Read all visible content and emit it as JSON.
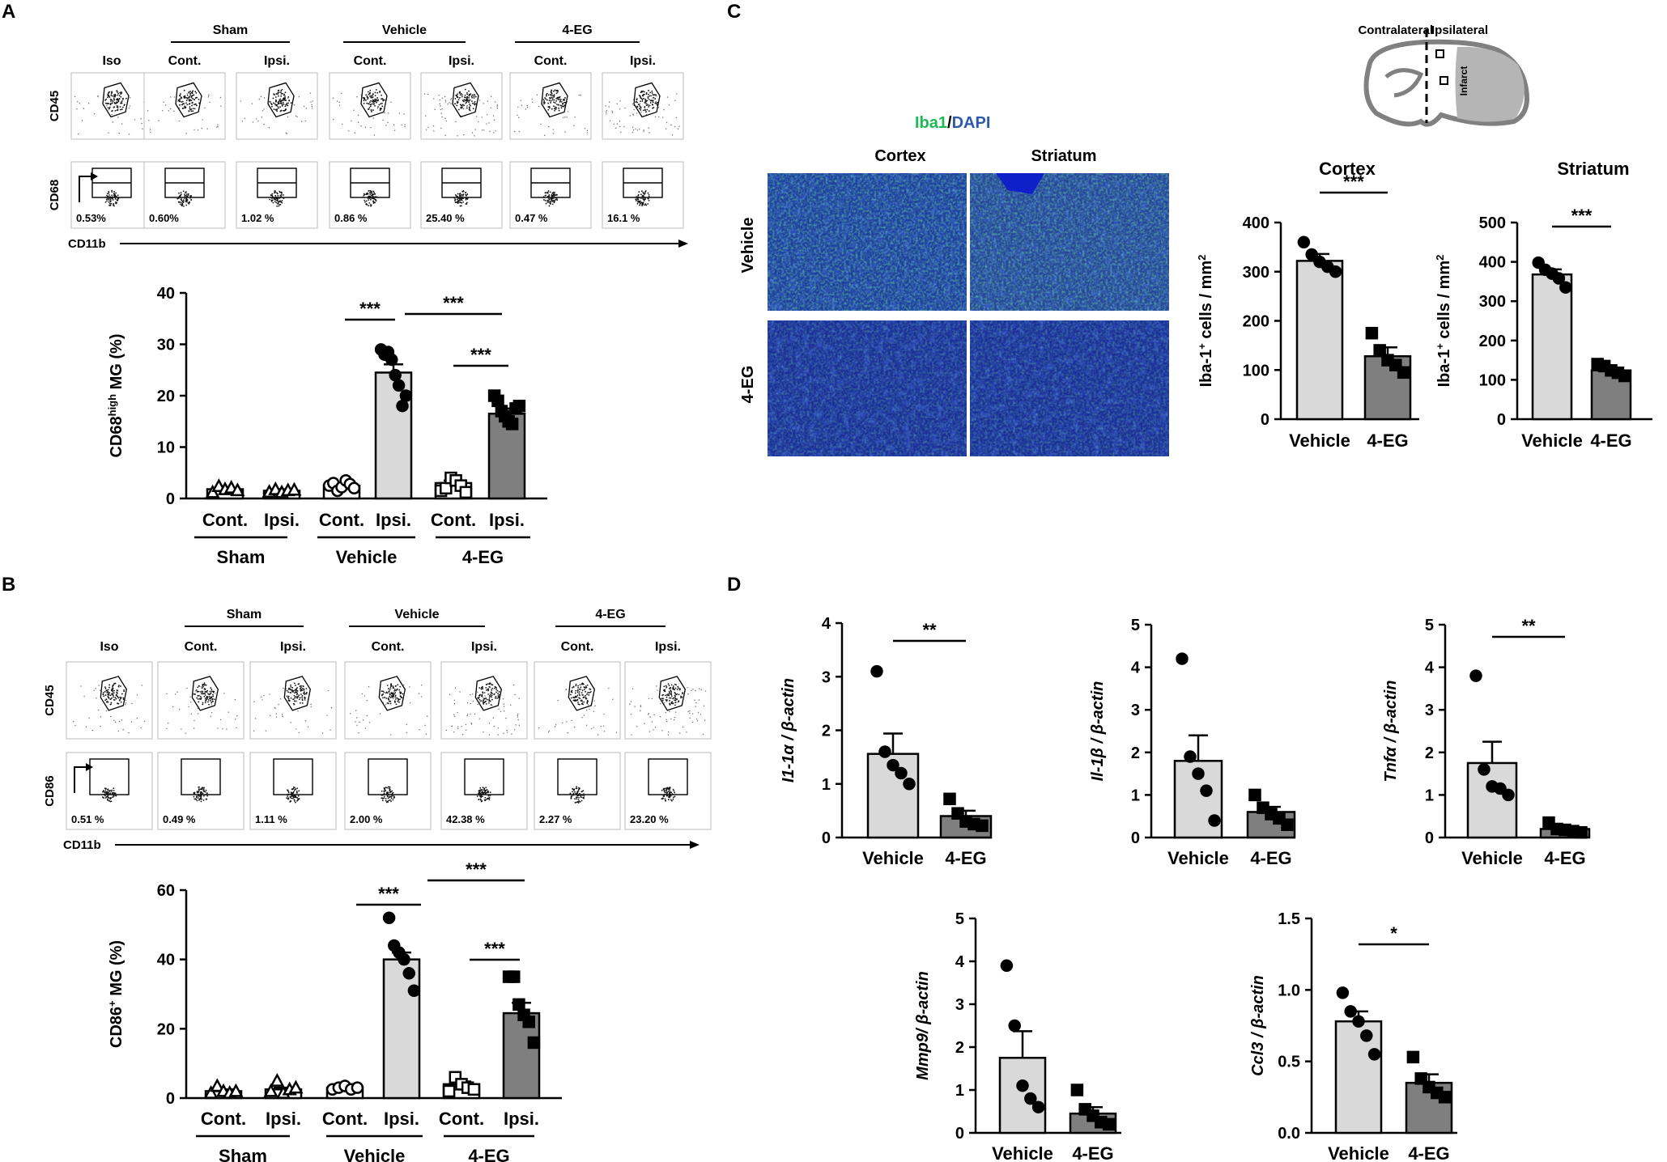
{
  "figure": {
    "panel_a": {
      "letter": "A",
      "groups": [
        "Sham",
        "Vehicle",
        "4-EG"
      ],
      "flow_columns": [
        "Iso",
        "Cont.",
        "Ipsi.",
        "Cont.",
        "Ipsi.",
        "Cont.",
        "Ipsi."
      ],
      "y_axis_top": "CD45",
      "y_axis_bottom": "CD68",
      "x_axis": "CD11b",
      "percentages": [
        "0.53%",
        "0.60%",
        "1.02 %",
        "0.86 %",
        "25.40 %",
        "0.47 %",
        "16.1 %"
      ]
    },
    "panel_b": {
      "letter": "B",
      "groups": [
        "Sham",
        "Vehicle",
        "4-EG"
      ],
      "flow_columns": [
        "Iso",
        "Cont.",
        "Ipsi.",
        "Cont.",
        "Ipsi.",
        "Cont.",
        "Ipsi."
      ],
      "y_axis_top": "CD45",
      "y_axis_bottom": "CD86",
      "x_axis": "CD11b",
      "percentages": [
        "0.51 %",
        "0.49 %",
        "1.11 %",
        "2.00 %",
        "42.38 %",
        "2.27 %",
        "23.20 %"
      ]
    },
    "panel_c": {
      "letter": "C",
      "stain_green": "Iba1",
      "stain_sep": "/",
      "stain_blue": "DAPI",
      "micro_cols": [
        "Cortex",
        "Striatum"
      ],
      "micro_rows": [
        "Vehicle",
        "4-EG"
      ],
      "schematic": {
        "left": "Contralateral",
        "right": "Ipsilateral",
        "infarct": "Infarct"
      }
    },
    "panel_d": {
      "letter": "D"
    },
    "colors": {
      "light_bar": "#d9d9d9",
      "dark_bar": "#7f7f7f",
      "open_bar": "#ffffff",
      "iba1_green": "#1db954",
      "dapi_blue": "#2e5aa8",
      "micro_green": "#2f8a3a",
      "micro_blue": "#1c2e9a"
    }
  },
  "chart_data": [
    {
      "id": "cd68",
      "type": "bar",
      "ylabel_main": "CD68",
      "ylabel_sup": "high",
      "ylabel_rest": " MG (%)",
      "ylim": [
        0,
        40
      ],
      "yticks": [
        0,
        10,
        20,
        30,
        40
      ],
      "categories": [
        "Cont.",
        "Ipsi.",
        "Cont.",
        "Ipsi.",
        "Cont.",
        "Ipsi."
      ],
      "group_labels": [
        "Sham",
        "Vehicle",
        "4-EG"
      ],
      "values": [
        1.8,
        1.5,
        2.5,
        24.5,
        3.0,
        16.5
      ],
      "errors": [
        0.4,
        0.3,
        0.4,
        1.6,
        0.5,
        1.0
      ],
      "fills": [
        "white",
        "white",
        "white",
        "light",
        "white",
        "dark"
      ],
      "markers": [
        "triangle",
        "triangle",
        "circle",
        "circle",
        "square",
        "square"
      ],
      "points": [
        [
          1.2,
          2.4,
          1.8,
          2.1,
          1.6
        ],
        [
          1.3,
          1.8,
          1.2,
          1.6,
          1.7
        ],
        [
          2.5,
          3.0,
          1.5,
          2.2,
          3.5,
          2.8,
          2.0
        ],
        [
          29,
          28,
          28.5,
          27,
          24,
          22,
          18,
          20
        ],
        [
          1.5,
          2.0,
          4.0,
          3.5,
          2.5,
          1.2
        ],
        [
          20,
          19,
          17,
          16,
          15,
          14.5,
          17.5,
          18
        ]
      ],
      "significance": [
        {
          "from": 3,
          "to": 3,
          "label": "***"
        },
        {
          "from": 2,
          "to": 3,
          "label": "***"
        },
        {
          "from": 3,
          "to": 5,
          "label": "***"
        },
        {
          "from": 4,
          "to": 5,
          "label": "***"
        }
      ]
    },
    {
      "id": "cd86",
      "type": "bar",
      "ylabel_main": "CD86",
      "ylabel_sup": "+",
      "ylabel_rest": " MG (%)",
      "ylim": [
        0,
        60
      ],
      "yticks": [
        0,
        20,
        40,
        60
      ],
      "categories": [
        "Cont.",
        "Ipsi.",
        "Cont.",
        "Ipsi.",
        "Cont.",
        "Ipsi."
      ],
      "group_labels": [
        "Sham",
        "Vehicle",
        "4-EG"
      ],
      "values": [
        2.0,
        2.5,
        3.0,
        40.0,
        4.0,
        24.5
      ],
      "errors": [
        0.5,
        0.5,
        0.3,
        2.0,
        0.8,
        3.0
      ],
      "fills": [
        "white",
        "white",
        "white",
        "light",
        "white",
        "dark"
      ],
      "markers": [
        "triangle",
        "triangle",
        "circle",
        "circle",
        "square",
        "square"
      ],
      "points": [
        [
          1.5,
          3.5,
          2.0,
          1.5,
          2.0
        ],
        [
          2.0,
          5.0,
          1.5,
          2.5,
          3.0
        ],
        [
          2.5,
          3.0,
          3.5,
          2.5,
          3.0
        ],
        [
          52,
          44,
          42,
          40,
          36,
          31
        ],
        [
          2.0,
          6.0,
          4.0,
          3.0,
          2.5
        ],
        [
          35,
          35,
          27,
          24,
          22,
          16
        ]
      ],
      "significance": [
        {
          "from": 2,
          "to": 3,
          "label": "***"
        },
        {
          "from": 3,
          "to": 5,
          "label": "***"
        },
        {
          "from": 4,
          "to": 5,
          "label": "***"
        }
      ]
    },
    {
      "id": "iba_cortex",
      "type": "bar",
      "title": "Cortex",
      "ylabel_main": "Iba-1",
      "ylabel_sup": "+",
      "ylabel_rest": " cells / mm",
      "ylabel_sup2": "2",
      "ylim": [
        0,
        400
      ],
      "yticks": [
        0,
        100,
        200,
        300,
        400
      ],
      "categories": [
        "Vehicle",
        "4-EG"
      ],
      "values": [
        322,
        128
      ],
      "errors": [
        14,
        18
      ],
      "fills": [
        "light",
        "dark"
      ],
      "markers": [
        "circle",
        "square"
      ],
      "points": [
        [
          360,
          335,
          320,
          310,
          300
        ],
        [
          175,
          140,
          120,
          110,
          95
        ]
      ],
      "significance": [
        {
          "from": 0,
          "to": 1,
          "label": "***"
        }
      ]
    },
    {
      "id": "iba_striatum",
      "type": "bar",
      "title": "Striatum",
      "ylabel_main": "Iba-1",
      "ylabel_sup": "+",
      "ylabel_rest": " cells / mm",
      "ylabel_sup2": "2",
      "ylim": [
        0,
        500
      ],
      "yticks": [
        0,
        100,
        200,
        300,
        400,
        500
      ],
      "categories": [
        "Vehicle",
        "4-EG"
      ],
      "values": [
        368,
        124
      ],
      "errors": [
        13,
        7
      ],
      "fills": [
        "light",
        "dark"
      ],
      "markers": [
        "circle",
        "square"
      ],
      "points": [
        [
          398,
          380,
          370,
          358,
          335
        ],
        [
          140,
          135,
          124,
          118,
          110
        ]
      ],
      "significance": [
        {
          "from": 0,
          "to": 1,
          "label": "***"
        }
      ]
    },
    {
      "id": "il1a",
      "type": "bar",
      "ylabel_main": "I1-1α / β-actin",
      "ylim": [
        0,
        4
      ],
      "yticks": [
        0,
        1,
        2,
        3,
        4
      ],
      "categories": [
        "Vehicle",
        "4-EG"
      ],
      "values": [
        1.56,
        0.4
      ],
      "errors": [
        0.38,
        0.1
      ],
      "fills": [
        "light",
        "dark"
      ],
      "markers": [
        "circle",
        "square"
      ],
      "points": [
        [
          3.1,
          1.6,
          1.35,
          1.2,
          1.0
        ],
        [
          0.72,
          0.45,
          0.3,
          0.25,
          0.22
        ]
      ],
      "significance": [
        {
          "from": 0,
          "to": 1,
          "label": "**"
        }
      ]
    },
    {
      "id": "il1b",
      "type": "bar",
      "ylabel_main": "Il-1β / β-actin",
      "ylim": [
        0,
        5
      ],
      "yticks": [
        0,
        1,
        2,
        3,
        4,
        5
      ],
      "categories": [
        "Vehicle",
        "4-EG"
      ],
      "values": [
        1.8,
        0.6
      ],
      "errors": [
        0.6,
        0.12
      ],
      "fills": [
        "light",
        "dark"
      ],
      "markers": [
        "circle",
        "square"
      ],
      "points": [
        [
          4.2,
          1.9,
          1.5,
          1.1,
          0.4
        ],
        [
          1.0,
          0.7,
          0.55,
          0.45,
          0.3
        ]
      ],
      "significance": []
    },
    {
      "id": "tnfa",
      "type": "bar",
      "ylabel_main": "Tnfα / β-actin",
      "ylim": [
        0,
        5
      ],
      "yticks": [
        0,
        1,
        2,
        3,
        4,
        5
      ],
      "categories": [
        "Vehicle",
        "4-EG"
      ],
      "values": [
        1.75,
        0.2
      ],
      "errors": [
        0.5,
        0.05
      ],
      "fills": [
        "light",
        "dark"
      ],
      "markers": [
        "circle",
        "square"
      ],
      "points": [
        [
          3.8,
          1.6,
          1.2,
          1.15,
          1.0
        ],
        [
          0.35,
          0.2,
          0.18,
          0.15,
          0.12
        ]
      ],
      "significance": [
        {
          "from": 0,
          "to": 1,
          "label": "**"
        }
      ]
    },
    {
      "id": "mmp9",
      "type": "bar",
      "ylabel_main": "Mmp9/ β-actin",
      "ylim": [
        0,
        5
      ],
      "yticks": [
        0,
        1,
        2,
        3,
        4,
        5
      ],
      "categories": [
        "Vehicle",
        "4-EG"
      ],
      "values": [
        1.75,
        0.45
      ],
      "errors": [
        0.62,
        0.15
      ],
      "fills": [
        "light",
        "dark"
      ],
      "markers": [
        "circle",
        "square"
      ],
      "points": [
        [
          3.9,
          2.5,
          1.1,
          0.8,
          0.6
        ],
        [
          1.0,
          0.55,
          0.4,
          0.25,
          0.2
        ]
      ],
      "significance": []
    },
    {
      "id": "ccl3",
      "type": "bar",
      "ylabel_main": "Ccl3 / β-actin",
      "ylim": [
        0,
        1.5
      ],
      "yticks": [
        0,
        0.5,
        1.0,
        1.5
      ],
      "ytick_labels": [
        "0.0",
        "0.5",
        "1.0",
        "1.5"
      ],
      "categories": [
        "Vehicle",
        "4-EG"
      ],
      "values": [
        0.78,
        0.35
      ],
      "errors": [
        0.07,
        0.06
      ],
      "fills": [
        "light",
        "dark"
      ],
      "markers": [
        "circle",
        "square"
      ],
      "points": [
        [
          0.98,
          0.85,
          0.78,
          0.68,
          0.55
        ],
        [
          0.53,
          0.38,
          0.32,
          0.28,
          0.25
        ]
      ],
      "significance": [
        {
          "from": 0,
          "to": 1,
          "label": "*"
        }
      ]
    }
  ]
}
